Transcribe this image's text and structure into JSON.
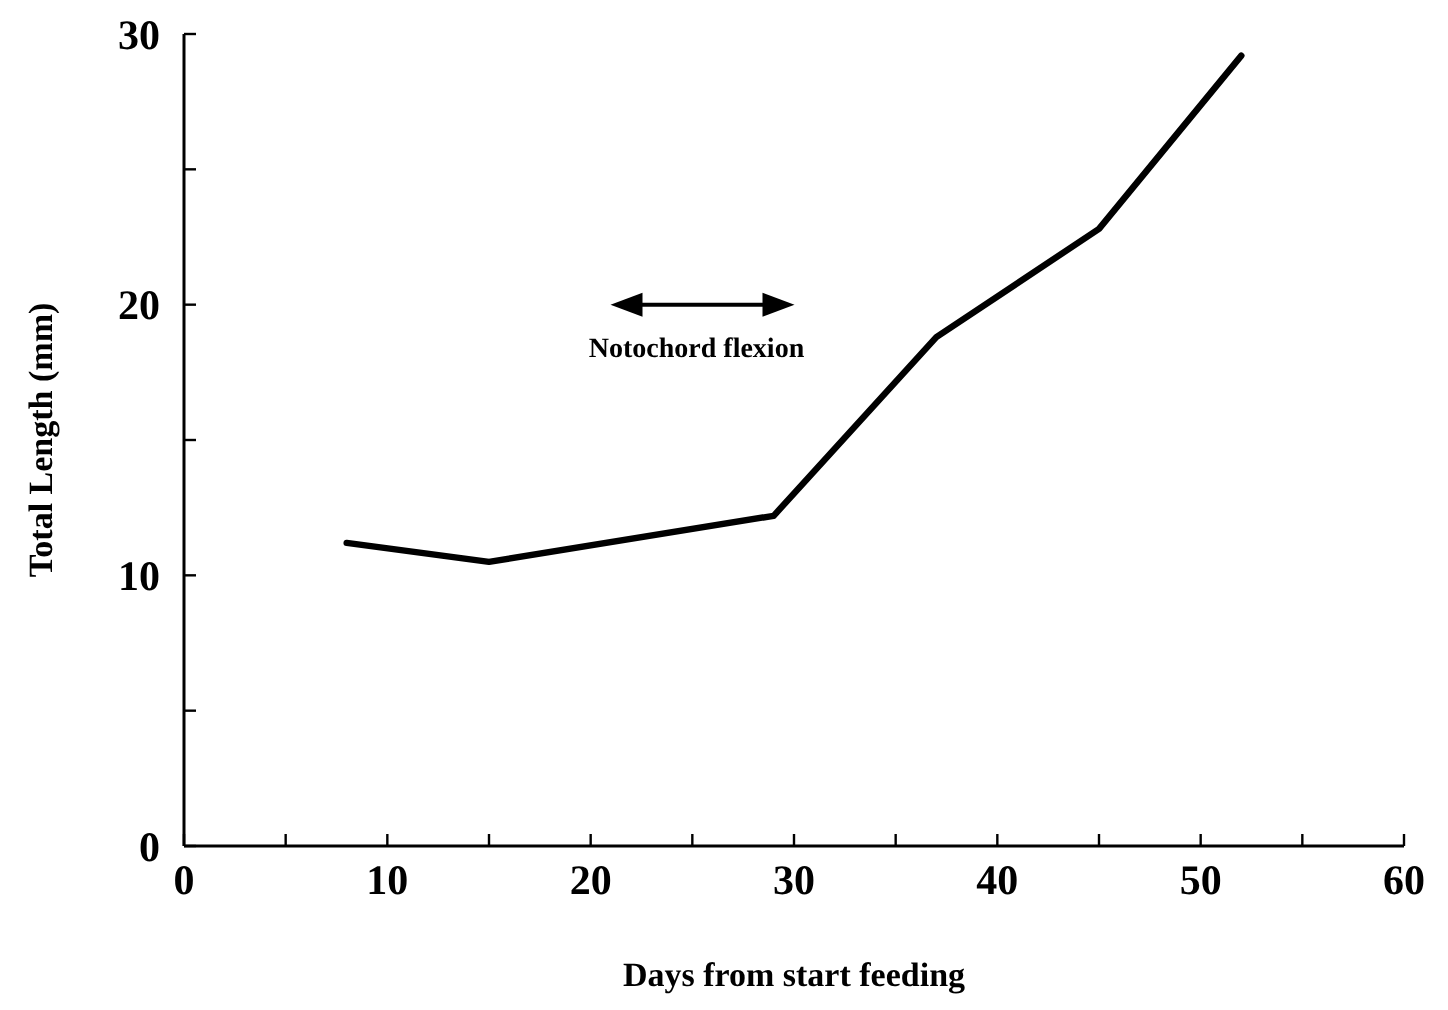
{
  "chart_data": {
    "type": "line",
    "xlabel": "Days from start feeding",
    "ylabel": "Total Length (mm)",
    "x": [
      8,
      15,
      29,
      37,
      45,
      52
    ],
    "values": [
      11.2,
      10.5,
      12.2,
      18.8,
      22.8,
      29.2
    ],
    "color": "#000000",
    "marker": "none",
    "line_style": "solid",
    "xlim": [
      0,
      60
    ],
    "ylim": [
      0,
      30
    ],
    "xticks": [
      0,
      {
        "value": 5,
        "label": null
      },
      10,
      {
        "value": 15,
        "label": null
      },
      20,
      {
        "value": 25,
        "label": null
      },
      30,
      {
        "value": 35,
        "label": null
      },
      40,
      {
        "value": 45,
        "label": null
      },
      50,
      {
        "value": 55,
        "label": null
      },
      60
    ],
    "yticks": [
      0,
      {
        "value": 5,
        "label": null
      },
      10,
      {
        "value": 15,
        "label": null
      },
      20,
      {
        "value": 25,
        "label": null
      },
      30
    ],
    "annotations": [
      "Notochord flexion"
    ],
    "grid": false
  }
}
